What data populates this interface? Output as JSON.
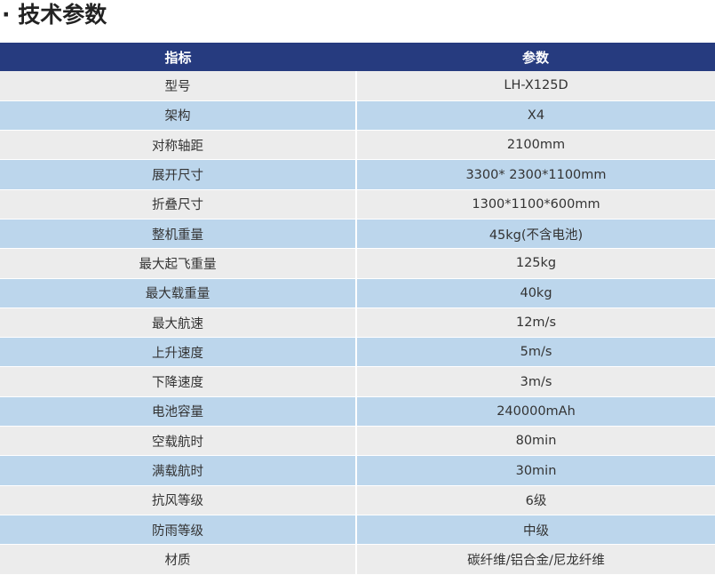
{
  "section": {
    "title": "· 技术参数"
  },
  "table": {
    "headers": {
      "name": "指标",
      "value": "参数"
    },
    "rows": [
      {
        "name": "型号",
        "value": "LH-X125D"
      },
      {
        "name": "架构",
        "value": "X4"
      },
      {
        "name": "对称轴距",
        "value": "2100mm"
      },
      {
        "name": "展开尺寸",
        "value": "3300* 2300*1100mm"
      },
      {
        "name": "折叠尺寸",
        "value": "1300*1100*600mm"
      },
      {
        "name": "整机重量",
        "value": "45kg(不含电池)"
      },
      {
        "name": "最大起飞重量",
        "value": "125kg"
      },
      {
        "name": "最大载重量",
        "value": "40kg"
      },
      {
        "name": "最大航速",
        "value": "12m/s"
      },
      {
        "name": "上升速度",
        "value": "5m/s"
      },
      {
        "name": "下降速度",
        "value": "3m/s"
      },
      {
        "name": "电池容量",
        "value": "240000mAh"
      },
      {
        "name": "空载航时",
        "value": "80min"
      },
      {
        "name": "满载航时",
        "value": "30min"
      },
      {
        "name": "抗风等级",
        "value": "6级"
      },
      {
        "name": "防雨等级",
        "value": "中级"
      },
      {
        "name": "材质",
        "value": "碳纤维/铝合金/尼龙纤维"
      }
    ]
  },
  "colors": {
    "header_background": "#263b7f",
    "row_gray": "#ececec",
    "row_blue": "#bcd6ec"
  }
}
